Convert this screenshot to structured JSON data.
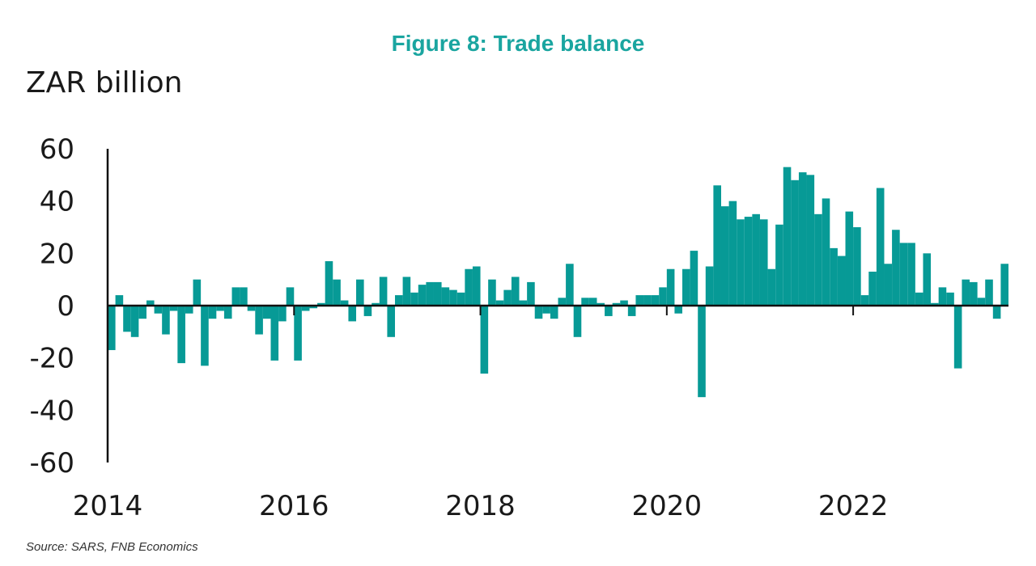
{
  "figure": {
    "title": "Figure 8: Trade balance",
    "unit_label": "ZAR billion",
    "source": "Source: SARS, FNB Economics"
  },
  "colors": {
    "bar": "#079a96",
    "axis": "#111111",
    "title": "#1aa5a0"
  },
  "chart_data": {
    "type": "bar",
    "title": "Figure 8: Trade balance",
    "xlabel": "",
    "ylabel": "ZAR billion",
    "ylim": [
      -60,
      60
    ],
    "yticks": [
      60,
      40,
      20,
      0,
      -20,
      -40,
      -60
    ],
    "ytick_labels": [
      "60",
      "40",
      "20",
      "0",
      "-20",
      "-40",
      "-60"
    ],
    "xticks": [
      2014,
      2016,
      2018,
      2020,
      2022
    ],
    "xtick_labels": [
      "2014",
      "2016",
      "2018",
      "2020",
      "2022"
    ],
    "start": "2014-01",
    "frequency": "monthly",
    "series": [
      {
        "name": "Trade balance",
        "values": [
          -17,
          4,
          -10,
          -12,
          -5,
          2,
          -3,
          -11,
          -2,
          -22,
          -3,
          10,
          -23,
          -5,
          -2,
          -5,
          7,
          7,
          -2,
          -11,
          -5,
          -21,
          -6,
          7,
          -21,
          -2,
          -1,
          1,
          17,
          10,
          2,
          -6,
          10,
          -4,
          1,
          11,
          -12,
          4,
          11,
          5,
          8,
          9,
          9,
          7,
          6,
          5,
          14,
          15,
          -26,
          10,
          2,
          6,
          11,
          2,
          9,
          -5,
          -3,
          -5,
          3,
          16,
          -12,
          3,
          3,
          1,
          -4,
          1,
          2,
          -4,
          4,
          4,
          4,
          7,
          14,
          -3,
          14,
          21,
          -35,
          15,
          46,
          38,
          40,
          33,
          34,
          35,
          33,
          14,
          31,
          53,
          48,
          51,
          50,
          35,
          41,
          22,
          19,
          36,
          30,
          4,
          13,
          45,
          16,
          29,
          24,
          24,
          5,
          20,
          1,
          7,
          5,
          -24,
          10,
          9,
          3,
          10,
          -5,
          16
        ]
      }
    ]
  }
}
